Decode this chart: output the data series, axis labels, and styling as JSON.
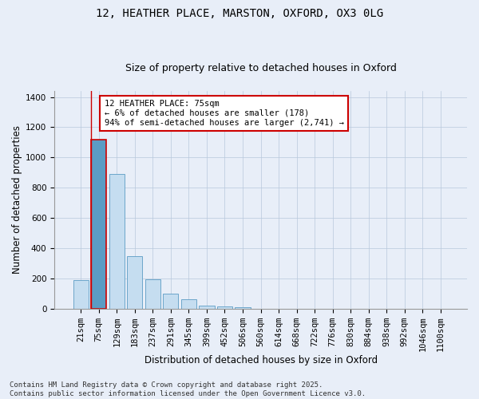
{
  "title_line1": "12, HEATHER PLACE, MARSTON, OXFORD, OX3 0LG",
  "title_line2": "Size of property relative to detached houses in Oxford",
  "xlabel": "Distribution of detached houses by size in Oxford",
  "ylabel": "Number of detached properties",
  "categories": [
    "21sqm",
    "75sqm",
    "129sqm",
    "183sqm",
    "237sqm",
    "291sqm",
    "345sqm",
    "399sqm",
    "452sqm",
    "506sqm",
    "560sqm",
    "614sqm",
    "668sqm",
    "722sqm",
    "776sqm",
    "830sqm",
    "884sqm",
    "938sqm",
    "992sqm",
    "1046sqm",
    "1100sqm"
  ],
  "values": [
    190,
    1120,
    890,
    350,
    195,
    100,
    60,
    20,
    17,
    10,
    0,
    0,
    0,
    0,
    0,
    0,
    0,
    0,
    0,
    0,
    0
  ],
  "highlight_index": 1,
  "highlight_color": "#5b9cc4",
  "bar_color": "#c5ddf0",
  "bar_edge_color": "#5b9cc4",
  "highlight_bar_edge_color": "#cc0000",
  "annotation_text": "12 HEATHER PLACE: 75sqm\n← 6% of detached houses are smaller (178)\n94% of semi-detached houses are larger (2,741) →",
  "annotation_box_color": "#ffffff",
  "annotation_box_edge_color": "#cc0000",
  "ylim": [
    0,
    1440
  ],
  "yticks": [
    0,
    200,
    400,
    600,
    800,
    1000,
    1200,
    1400
  ],
  "background_color": "#e8eef8",
  "footer_line1": "Contains HM Land Registry data © Crown copyright and database right 2025.",
  "footer_line2": "Contains public sector information licensed under the Open Government Licence v3.0.",
  "title_fontsize": 10,
  "subtitle_fontsize": 9,
  "axis_label_fontsize": 8.5,
  "tick_fontsize": 7.5,
  "annotation_fontsize": 7.5,
  "footer_fontsize": 6.5
}
